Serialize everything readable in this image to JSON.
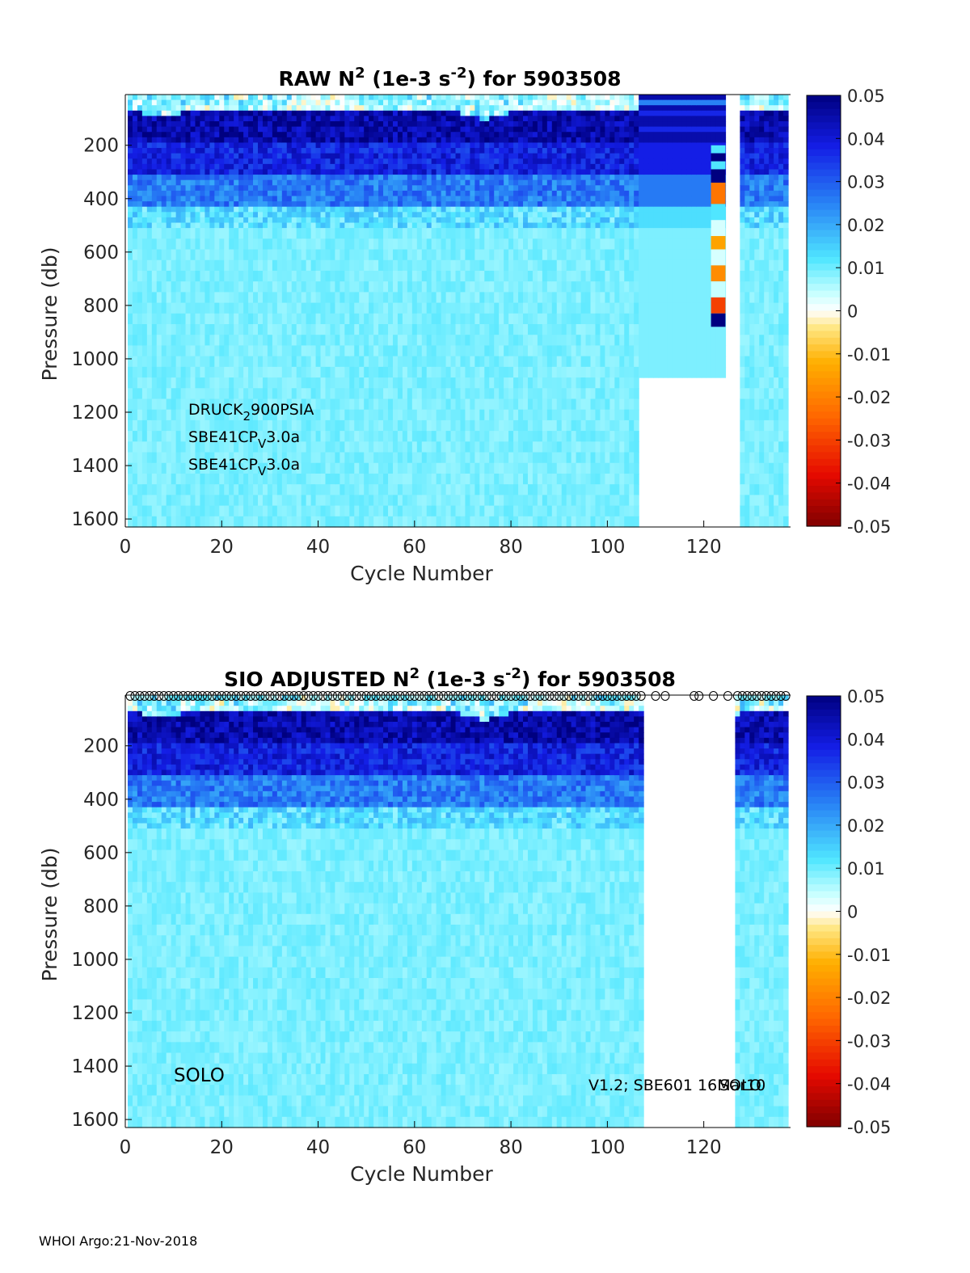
{
  "footer": "WHOI Argo:21-Nov-2018",
  "colorbar": {
    "ticks": [
      "0.05",
      "0.04",
      "0.03",
      "0.02",
      "0.01",
      "0",
      "-0.01",
      "-0.02",
      "-0.03",
      "-0.04",
      "-0.05"
    ],
    "range": [
      -0.05,
      0.05
    ],
    "colormap": "jet-with-white-center"
  },
  "chart_data": [
    {
      "type": "heatmap",
      "title": "RAW N",
      "title_sup1": "2",
      "title_mid": " (1e-3 s",
      "title_sup2": "-2",
      "title_end": ") for 5903508",
      "xlabel": "Cycle Number",
      "ylabel": "Pressure (db)",
      "xlim": [
        0,
        138
      ],
      "ylim": [
        1630,
        10
      ],
      "xticks": [
        "0",
        "20",
        "40",
        "60",
        "80",
        "100",
        "120"
      ],
      "yticks": [
        "200",
        "400",
        "600",
        "800",
        "1000",
        "1200",
        "1400",
        "1600"
      ],
      "annotations": [
        {
          "base": "DRUCK",
          "sub": "2",
          "rest": "900PSIA"
        },
        {
          "base": "SBE41CP",
          "sub": "V",
          "rest": "3.0a"
        },
        {
          "base": "SBE41CP",
          "sub": "V",
          "rest": "3.0a"
        }
      ],
      "data_gaps": [
        {
          "cycles": [
            107,
            127
          ],
          "pressure_below": 1040,
          "note": "no data"
        },
        {
          "cycles": [
            125,
            127
          ],
          "pressure_below": 10,
          "note": "no data"
        }
      ],
      "bands": [
        {
          "pressure": [
            10,
            60
          ],
          "value": 0.003
        },
        {
          "pressure": [
            60,
            190
          ],
          "value": 0.045
        },
        {
          "pressure": [
            190,
            300
          ],
          "value": 0.038
        },
        {
          "pressure": [
            300,
            420
          ],
          "value": 0.026
        },
        {
          "pressure": [
            420,
            500
          ],
          "value": 0.013
        },
        {
          "pressure": [
            500,
            1630
          ],
          "value": 0.009
        }
      ],
      "cycle_122_cells": [
        {
          "pressure": [
            200,
            230
          ],
          "value": 0.012
        },
        {
          "pressure": [
            230,
            260
          ],
          "value": 0.05
        },
        {
          "pressure": [
            260,
            290
          ],
          "value": 0.012
        },
        {
          "pressure": [
            290,
            340
          ],
          "value": 0.05
        },
        {
          "pressure": [
            340,
            420
          ],
          "value": -0.022
        },
        {
          "pressure": [
            420,
            480
          ],
          "value": 0.012
        },
        {
          "pressure": [
            480,
            540
          ],
          "value": 0.003
        },
        {
          "pressure": [
            540,
            590
          ],
          "value": -0.014
        },
        {
          "pressure": [
            590,
            650
          ],
          "value": 0.003
        },
        {
          "pressure": [
            650,
            710
          ],
          "value": -0.018
        },
        {
          "pressure": [
            710,
            770
          ],
          "value": 0.004
        },
        {
          "pressure": [
            770,
            830
          ],
          "value": -0.03
        },
        {
          "pressure": [
            830,
            880
          ],
          "value": 0.05
        }
      ]
    },
    {
      "type": "heatmap",
      "title": "SIO  ADJUSTED N",
      "title_sup1": "2",
      "title_mid": " (1e-3 s",
      "title_sup2": "-2",
      "title_end": ") for 5903508",
      "xlabel": "Cycle Number",
      "ylabel": "Pressure (db)",
      "xlim": [
        0,
        138
      ],
      "ylim": [
        1630,
        10
      ],
      "xticks": [
        "0",
        "20",
        "40",
        "60",
        "80",
        "100",
        "120"
      ],
      "yticks": [
        "200",
        "400",
        "600",
        "800",
        "1000",
        "1200",
        "1400",
        "1600"
      ],
      "annotations": [
        {
          "text": "SOLO",
          "position": "bottom-left"
        },
        {
          "text": "V1.2; SBE601 16Mar10",
          "position": "bottom-right"
        },
        {
          "text": "SOLO",
          "position": "bottom-right"
        }
      ],
      "data_gaps": [
        {
          "cycles": [
            108,
            126
          ],
          "pressure_below": 10,
          "note": "no data"
        }
      ],
      "flag_markers": "o",
      "flag_marker_cycles_sparse": [
        110,
        112,
        118,
        119,
        122,
        125
      ],
      "bands": [
        {
          "pressure": [
            10,
            60
          ],
          "value": 0.003
        },
        {
          "pressure": [
            60,
            190
          ],
          "value": 0.045
        },
        {
          "pressure": [
            190,
            300
          ],
          "value": 0.038
        },
        {
          "pressure": [
            300,
            420
          ],
          "value": 0.026
        },
        {
          "pressure": [
            420,
            500
          ],
          "value": 0.013
        },
        {
          "pressure": [
            500,
            1630
          ],
          "value": 0.009
        }
      ]
    }
  ]
}
